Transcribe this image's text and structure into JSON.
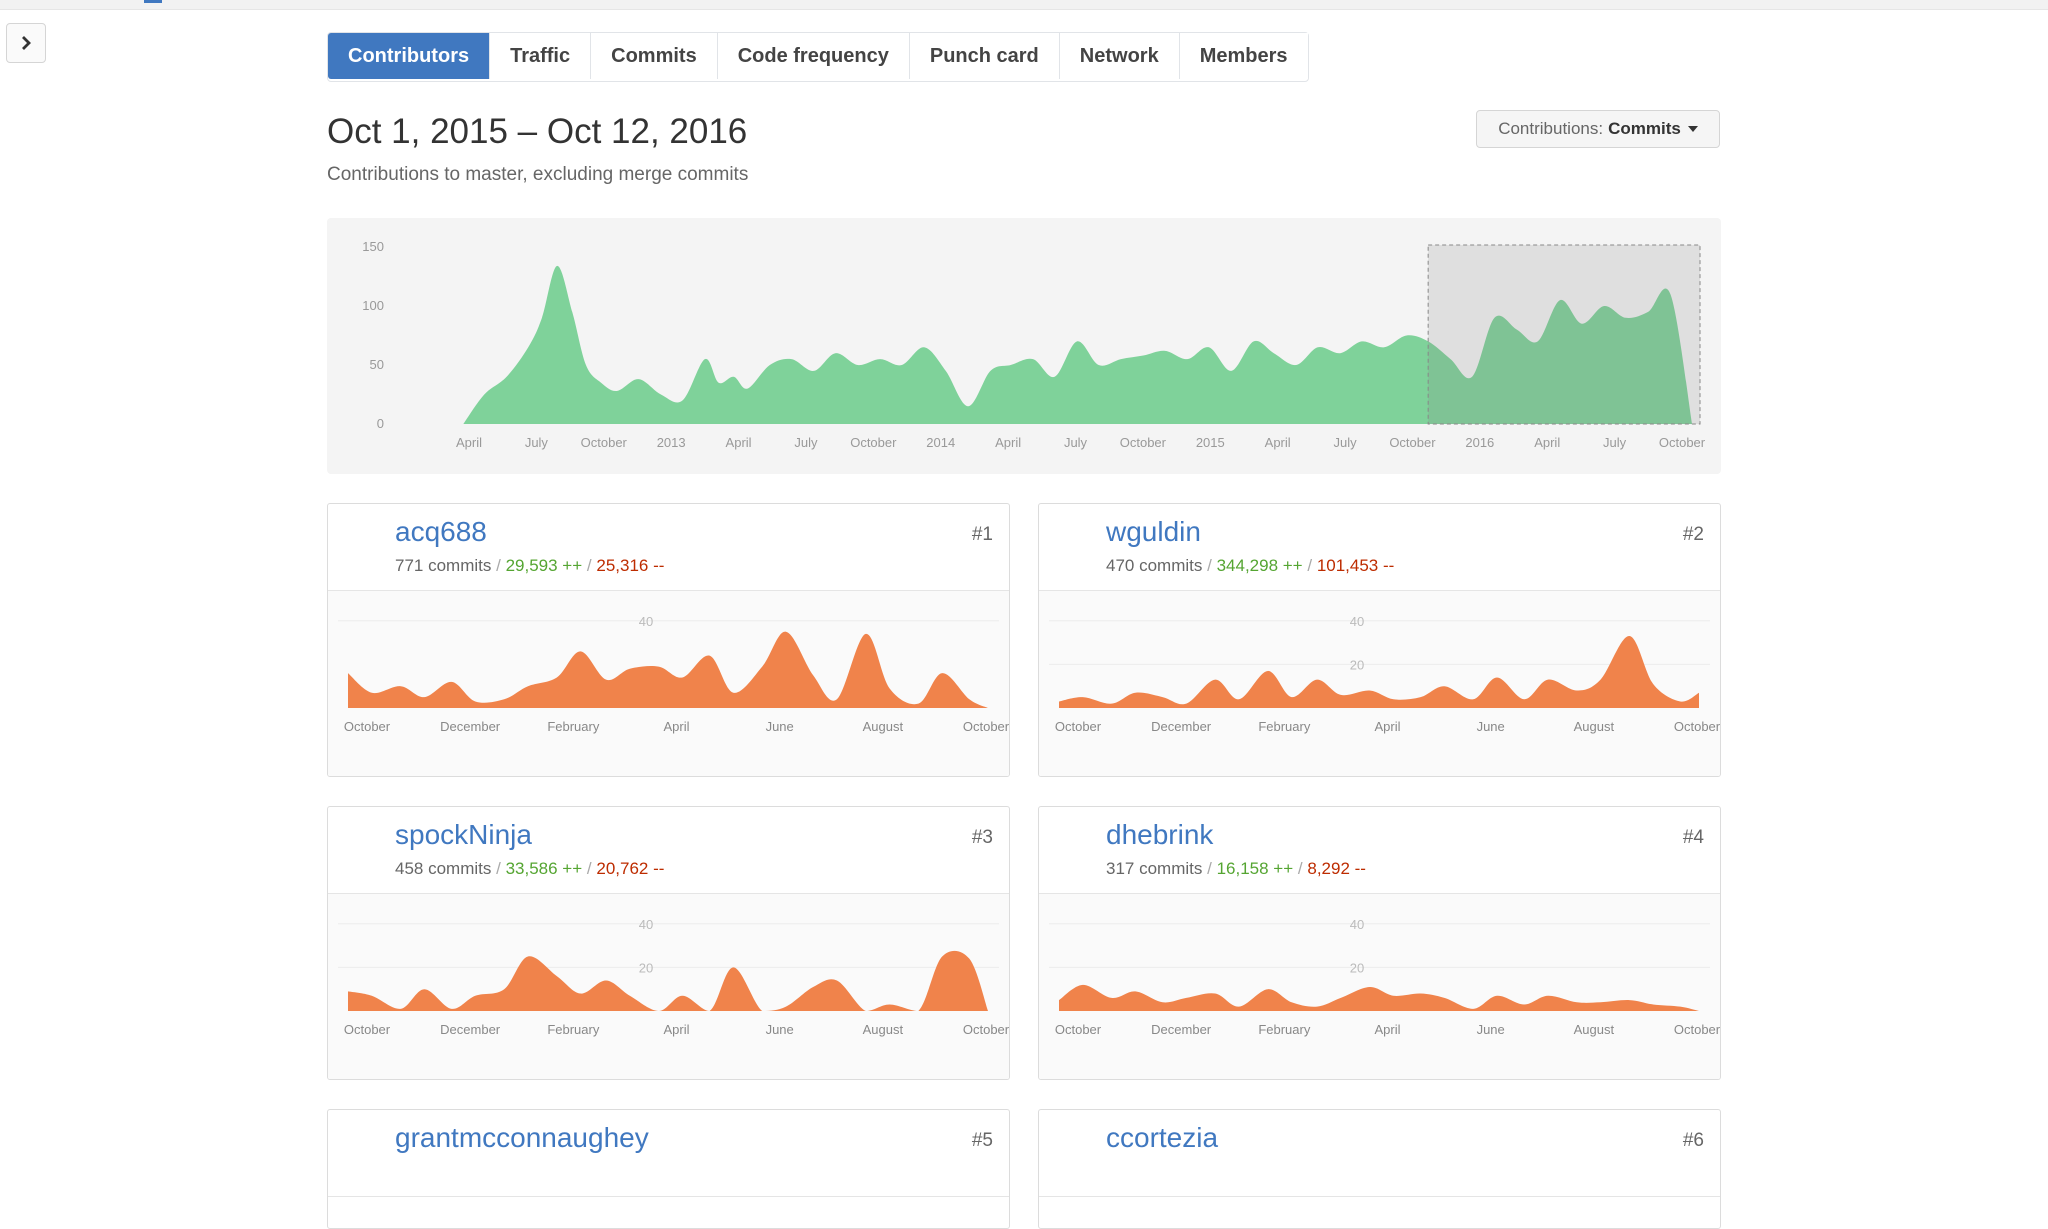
{
  "nav": {
    "tabs": [
      {
        "label": "Contributors",
        "active": true
      },
      {
        "label": "Traffic",
        "active": false
      },
      {
        "label": "Commits",
        "active": false
      },
      {
        "label": "Code frequency",
        "active": false
      },
      {
        "label": "Punch card",
        "active": false
      },
      {
        "label": "Network",
        "active": false
      },
      {
        "label": "Members",
        "active": false
      }
    ]
  },
  "header": {
    "date_range": "Oct 1, 2015 – Oct 12, 2016",
    "subtitle": "Contributions to master, excluding merge commits",
    "dropdown_prefix": "Contributions:",
    "dropdown_value": "Commits"
  },
  "colors": {
    "accent": "#4078c0",
    "overview_fill": "#7fd29a",
    "contributor_fill": "#f0834b",
    "additions": "#55a532",
    "deletions": "#bd2c00"
  },
  "chart_data": [
    {
      "type": "area",
      "title": "",
      "ylim": [
        0,
        150
      ],
      "yticks": [
        "0",
        "50",
        "100",
        "150"
      ],
      "x_tick_labels": [
        "April",
        "July",
        "October",
        "2013",
        "April",
        "July",
        "October",
        "2014",
        "April",
        "July",
        "October",
        "2015",
        "April",
        "July",
        "October",
        "2016",
        "April",
        "July",
        "October"
      ],
      "x_range": [
        "2012-01-01",
        "2016-10-12"
      ],
      "selection": [
        "2015-10-01",
        "2016-10-12"
      ],
      "series": [
        {
          "x": [
            "2012-02-01",
            "2012-03-01",
            "2012-04-01",
            "2012-05-01",
            "2012-05-20",
            "2012-06-10",
            "2012-07-01",
            "2012-07-20",
            "2012-08-10",
            "2012-09-01",
            "2012-10-01",
            "2012-11-01",
            "2012-12-01",
            "2013-01-01",
            "2013-01-20",
            "2013-02-10",
            "2013-03-01",
            "2013-04-01",
            "2013-05-01",
            "2013-06-01",
            "2013-07-01",
            "2013-08-01",
            "2013-09-01",
            "2013-10-01",
            "2013-11-01",
            "2013-12-01",
            "2014-01-01",
            "2014-02-01",
            "2014-03-01",
            "2014-04-01",
            "2014-05-01",
            "2014-06-01",
            "2014-07-01",
            "2014-08-01",
            "2014-09-01",
            "2014-10-01",
            "2014-11-01",
            "2014-12-01",
            "2015-01-01",
            "2015-02-01",
            "2015-03-01",
            "2015-04-01",
            "2015-05-01",
            "2015-06-01",
            "2015-07-01",
            "2015-08-01",
            "2015-09-01",
            "2015-10-01",
            "2015-11-01",
            "2015-12-01",
            "2016-01-01",
            "2016-02-01",
            "2016-03-01",
            "2016-04-01",
            "2016-05-01",
            "2016-06-01",
            "2016-07-01",
            "2016-08-01",
            "2016-09-01",
            "2016-10-01"
          ],
          "values": [
            0,
            25,
            40,
            65,
            90,
            134,
            95,
            50,
            35,
            28,
            38,
            25,
            20,
            55,
            35,
            40,
            30,
            50,
            55,
            45,
            60,
            50,
            55,
            50,
            65,
            45,
            15,
            45,
            50,
            55,
            40,
            70,
            50,
            55,
            58,
            62,
            55,
            65,
            45,
            70,
            60,
            50,
            65,
            60,
            70,
            65,
            75,
            70,
            55,
            40,
            90,
            80,
            70,
            105,
            85,
            100,
            90,
            95,
            110,
            0
          ]
        }
      ]
    },
    {
      "type": "area",
      "title": "",
      "ylim": [
        0,
        50
      ],
      "yticks": [
        "40"
      ],
      "x_tick_labels": [
        "October",
        "December",
        "February",
        "April",
        "June",
        "August",
        "October"
      ],
      "series": [
        {
          "name": "acq688",
          "x": [
            "2015-10-01",
            "2015-10-15",
            "2015-11-01",
            "2015-11-15",
            "2015-12-01",
            "2015-12-15",
            "2016-01-01",
            "2016-01-15",
            "2016-02-01",
            "2016-02-15",
            "2016-03-01",
            "2016-03-15",
            "2016-04-01",
            "2016-04-15",
            "2016-05-01",
            "2016-05-15",
            "2016-06-01",
            "2016-06-15",
            "2016-07-01",
            "2016-07-15",
            "2016-08-01",
            "2016-08-15",
            "2016-09-01",
            "2016-09-15",
            "2016-10-01",
            "2016-10-12"
          ],
          "values": [
            16,
            7,
            10,
            5,
            12,
            3,
            4,
            10,
            14,
            26,
            13,
            18,
            19,
            14,
            24,
            7,
            19,
            35,
            15,
            4,
            34,
            9,
            2,
            16,
            4,
            0
          ]
        }
      ]
    },
    {
      "type": "area",
      "title": "",
      "ylim": [
        0,
        50
      ],
      "yticks": [
        "40",
        "20"
      ],
      "x_tick_labels": [
        "October",
        "December",
        "February",
        "April",
        "June",
        "August",
        "October"
      ],
      "series": [
        {
          "name": "wguldin",
          "x": [
            "2015-10-01",
            "2015-10-15",
            "2015-11-01",
            "2015-11-15",
            "2015-12-01",
            "2015-12-15",
            "2016-01-01",
            "2016-01-15",
            "2016-02-01",
            "2016-02-15",
            "2016-03-01",
            "2016-03-15",
            "2016-04-01",
            "2016-04-15",
            "2016-05-01",
            "2016-05-15",
            "2016-06-01",
            "2016-06-15",
            "2016-07-01",
            "2016-07-15",
            "2016-08-01",
            "2016-08-15",
            "2016-09-01",
            "2016-09-15",
            "2016-10-01",
            "2016-10-12"
          ],
          "values": [
            3,
            5,
            2,
            7,
            5,
            2,
            13,
            4,
            17,
            5,
            13,
            6,
            8,
            4,
            5,
            10,
            4,
            14,
            4,
            13,
            8,
            13,
            33,
            11,
            3,
            7
          ]
        }
      ]
    },
    {
      "type": "area",
      "title": "",
      "ylim": [
        0,
        50
      ],
      "yticks": [
        "40",
        "20"
      ],
      "x_tick_labels": [
        "October",
        "December",
        "February",
        "April",
        "June",
        "August",
        "October"
      ],
      "series": [
        {
          "name": "spockNinja",
          "x": [
            "2015-10-01",
            "2015-10-15",
            "2015-11-01",
            "2015-11-15",
            "2015-12-01",
            "2015-12-15",
            "2016-01-01",
            "2016-01-15",
            "2016-02-01",
            "2016-02-15",
            "2016-03-01",
            "2016-03-15",
            "2016-04-01",
            "2016-04-15",
            "2016-05-01",
            "2016-05-15",
            "2016-06-01",
            "2016-06-15",
            "2016-07-01",
            "2016-07-15",
            "2016-08-01",
            "2016-08-15",
            "2016-09-01",
            "2016-09-15",
            "2016-10-01",
            "2016-10-12"
          ],
          "values": [
            9,
            7,
            1,
            10,
            1,
            7,
            10,
            25,
            16,
            8,
            14,
            7,
            0,
            7,
            0,
            20,
            0,
            2,
            11,
            14,
            0,
            3,
            0,
            25,
            24,
            0
          ]
        }
      ]
    },
    {
      "type": "area",
      "title": "",
      "ylim": [
        0,
        50
      ],
      "yticks": [
        "40",
        "20"
      ],
      "x_tick_labels": [
        "October",
        "December",
        "February",
        "April",
        "June",
        "August",
        "October"
      ],
      "series": [
        {
          "name": "dhebrink",
          "x": [
            "2015-10-01",
            "2015-10-15",
            "2015-11-01",
            "2015-11-15",
            "2015-12-01",
            "2015-12-15",
            "2016-01-01",
            "2016-01-15",
            "2016-02-01",
            "2016-02-15",
            "2016-03-01",
            "2016-03-15",
            "2016-04-01",
            "2016-04-15",
            "2016-05-01",
            "2016-05-15",
            "2016-06-01",
            "2016-06-15",
            "2016-07-01",
            "2016-07-15",
            "2016-08-01",
            "2016-08-15",
            "2016-09-01",
            "2016-09-15",
            "2016-10-01",
            "2016-10-12"
          ],
          "values": [
            5,
            12,
            6,
            9,
            4,
            6,
            8,
            2,
            10,
            4,
            2,
            6,
            11,
            7,
            8,
            6,
            1,
            7,
            3,
            7,
            4,
            4,
            5,
            3,
            2,
            0
          ]
        }
      ]
    }
  ],
  "contributors": [
    {
      "login": "acq688",
      "commits": "771 commits",
      "additions": "29,593 ++",
      "deletions": "25,316 --",
      "rank": "#1"
    },
    {
      "login": "wguldin",
      "commits": "470 commits",
      "additions": "344,298 ++",
      "deletions": "101,453 --",
      "rank": "#2"
    },
    {
      "login": "spockNinja",
      "commits": "458 commits",
      "additions": "33,586 ++",
      "deletions": "20,762 --",
      "rank": "#3"
    },
    {
      "login": "dhebrink",
      "commits": "317 commits",
      "additions": "16,158 ++",
      "deletions": "8,292 --",
      "rank": "#4"
    },
    {
      "login": "grantmcconnaughey",
      "rank": "#5"
    },
    {
      "login": "ccortezia",
      "rank": "#6"
    }
  ]
}
